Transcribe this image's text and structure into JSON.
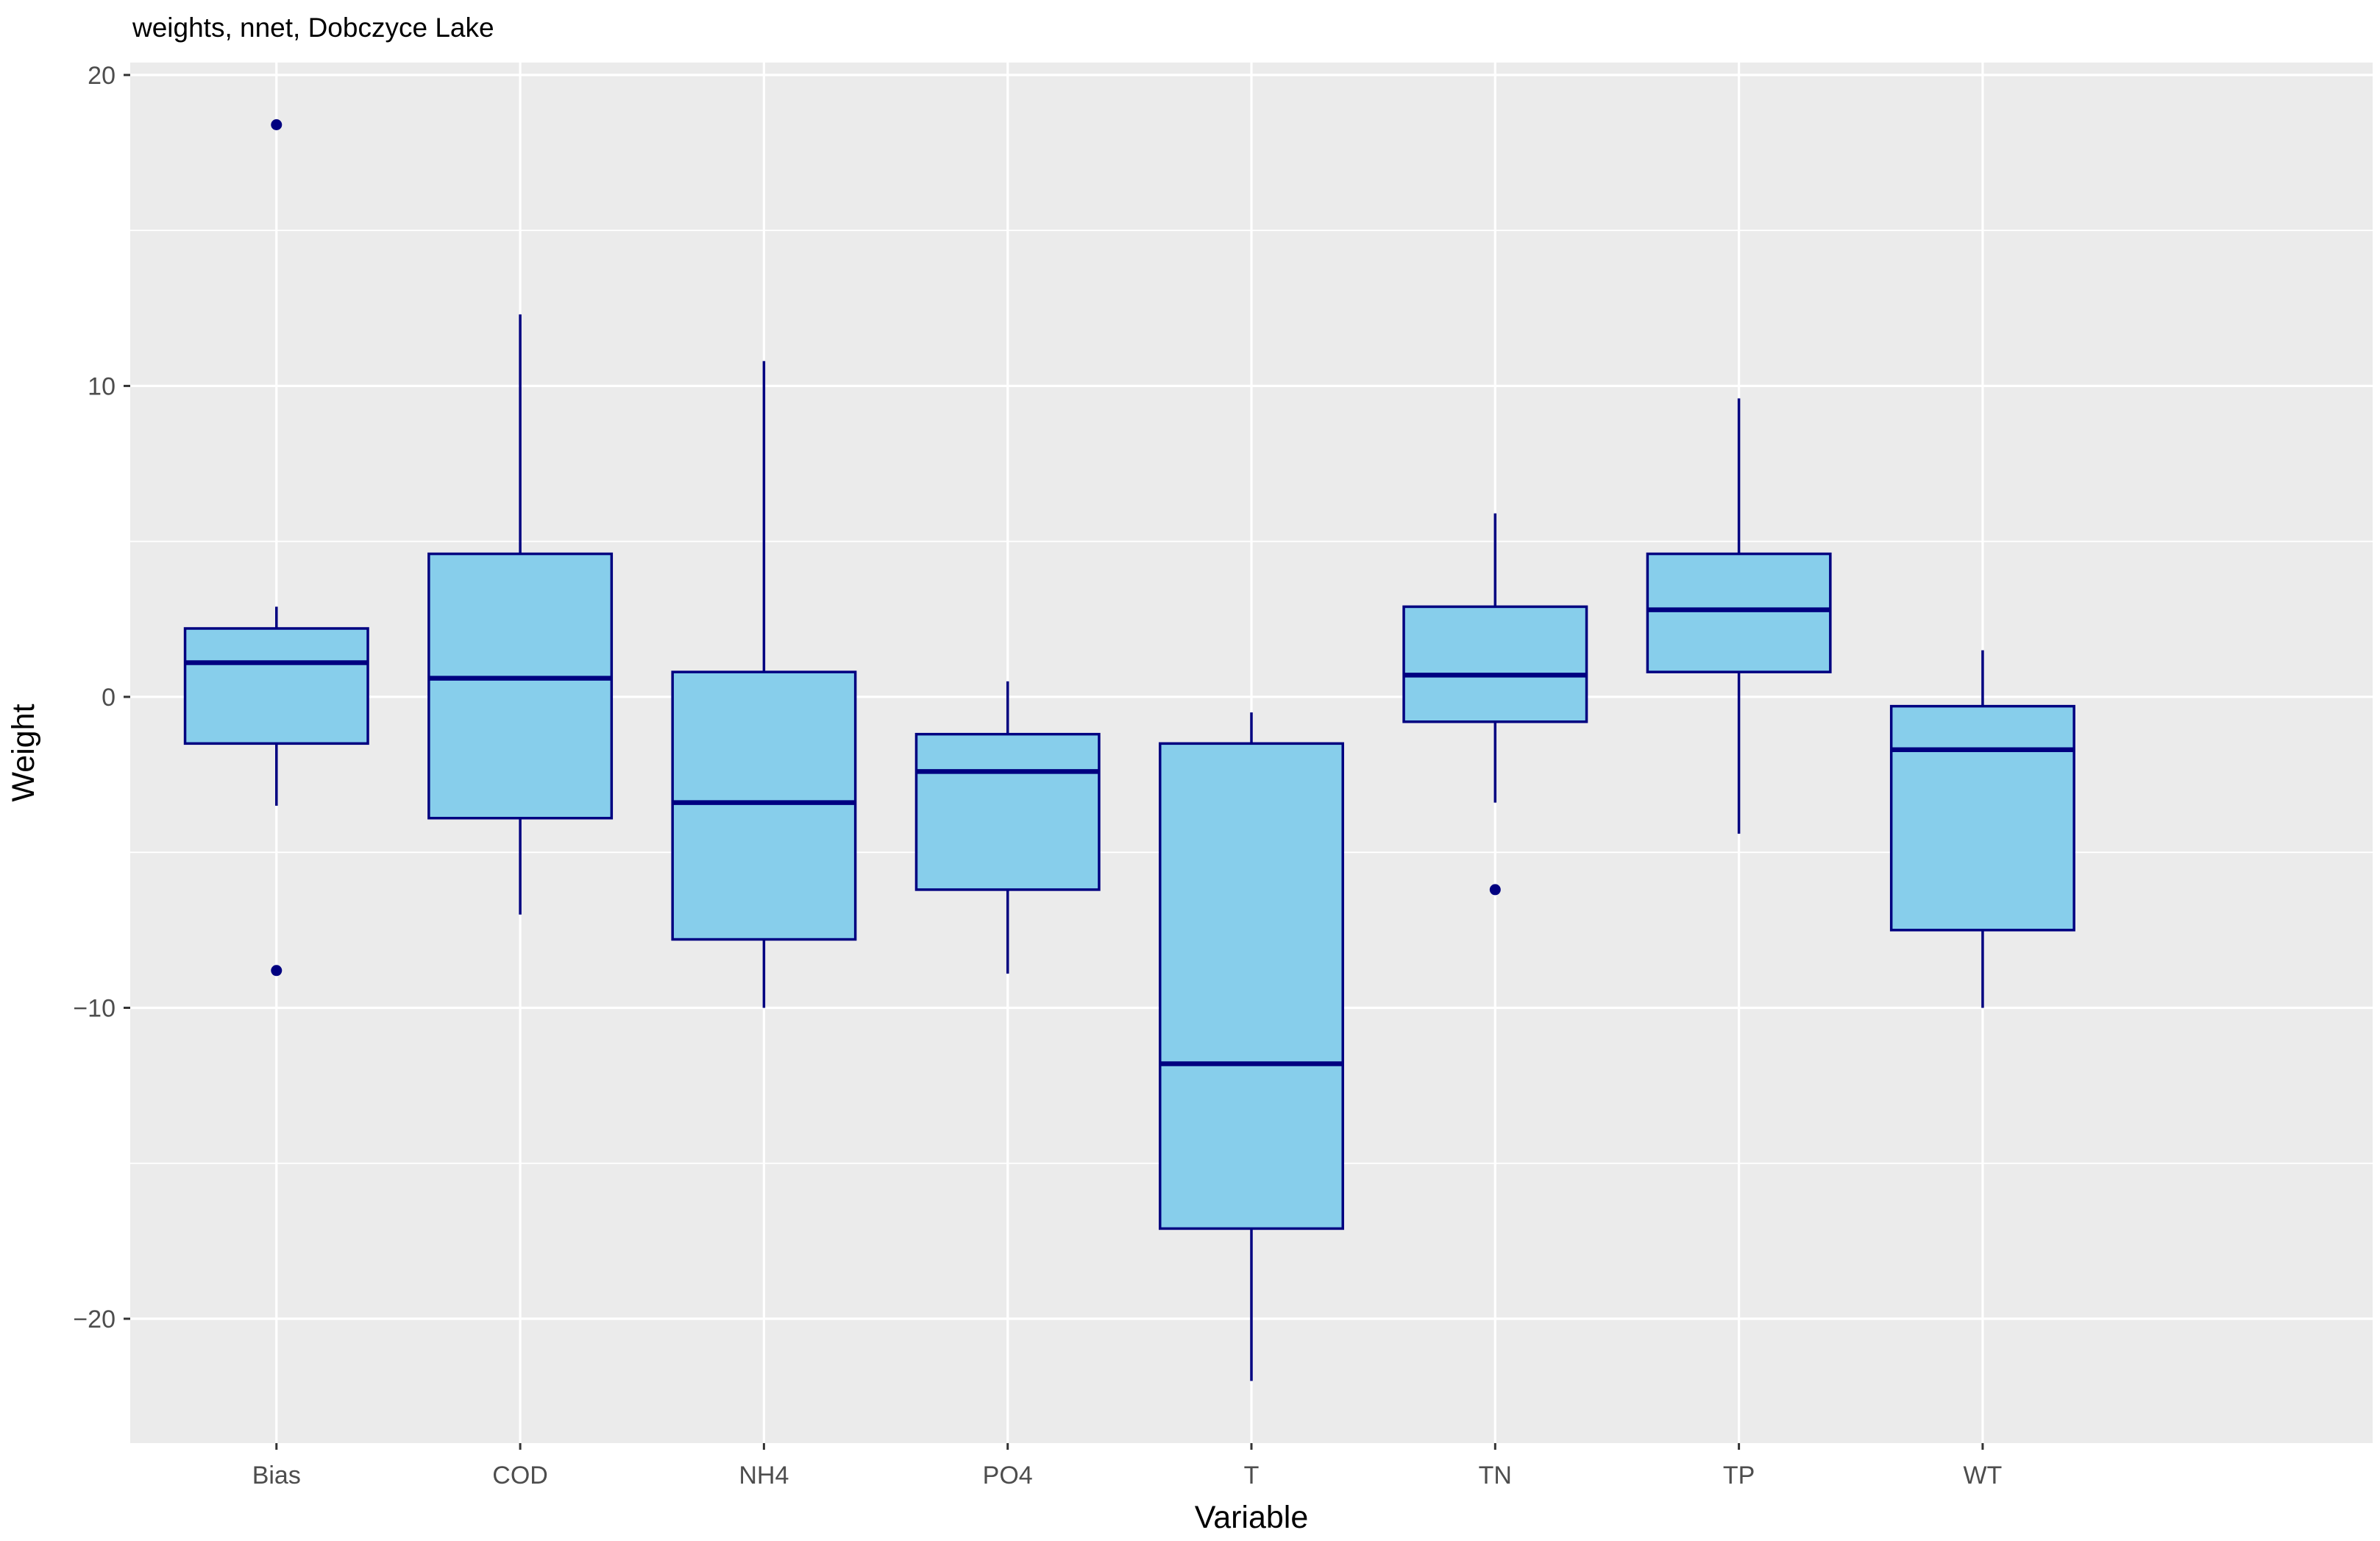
{
  "chart_data": {
    "type": "boxplot",
    "title": "weights, nnet, Dobczyce Lake",
    "xlabel": "Variable",
    "ylabel": "Weight",
    "categories": [
      "Bias",
      "COD",
      "NH4",
      "PO4",
      "T",
      "TN",
      "TP",
      "WT"
    ],
    "y_ticks": [
      20,
      10,
      0,
      -10,
      -20
    ],
    "y_tick_labels": [
      "20",
      "10",
      "0",
      "−10",
      "−20"
    ],
    "y_minor_ticks": [
      15,
      5,
      -5,
      -15
    ],
    "ylim": [
      -24,
      20.4
    ],
    "grid": true,
    "legend_position": "none",
    "series": [
      {
        "name": "Bias",
        "whisker_low": -3.5,
        "q1": -1.5,
        "median": 1.1,
        "q3": 2.2,
        "whisker_high": 2.9,
        "outliers": [
          18.4,
          -8.8
        ]
      },
      {
        "name": "COD",
        "whisker_low": -7.0,
        "q1": -3.9,
        "median": 0.6,
        "q3": 4.6,
        "whisker_high": 12.3,
        "outliers": []
      },
      {
        "name": "NH4",
        "whisker_low": -10.0,
        "q1": -7.8,
        "median": -3.4,
        "q3": 0.8,
        "whisker_high": 10.8,
        "outliers": []
      },
      {
        "name": "PO4",
        "whisker_low": -8.9,
        "q1": -6.2,
        "median": -2.4,
        "q3": -1.2,
        "whisker_high": 0.5,
        "outliers": []
      },
      {
        "name": "T",
        "whisker_low": -22.0,
        "q1": -17.1,
        "median": -11.8,
        "q3": -1.5,
        "whisker_high": -0.5,
        "outliers": []
      },
      {
        "name": "TN",
        "whisker_low": -3.4,
        "q1": -0.8,
        "median": 0.7,
        "q3": 2.9,
        "whisker_high": 5.9,
        "outliers": [
          -6.2
        ]
      },
      {
        "name": "TP",
        "whisker_low": -4.4,
        "q1": 0.8,
        "median": 2.8,
        "q3": 4.6,
        "whisker_high": 9.6,
        "outliers": []
      },
      {
        "name": "WT",
        "whisker_low": -10.0,
        "q1": -7.5,
        "median": -1.7,
        "q3": -0.3,
        "whisker_high": 1.5,
        "outliers": []
      }
    ],
    "style": {
      "panel_bg": "#EBEBEB",
      "grid_color": "#FFFFFF",
      "box_fill": "#87CEEB",
      "box_stroke": "#000080",
      "median_stroke": "#000080",
      "whisker_stroke": "#000080",
      "outlier_fill": "#000080",
      "tick_mark_color": "#333333",
      "tick_text_color": "#4D4D4D",
      "title_color": "#000000"
    }
  }
}
